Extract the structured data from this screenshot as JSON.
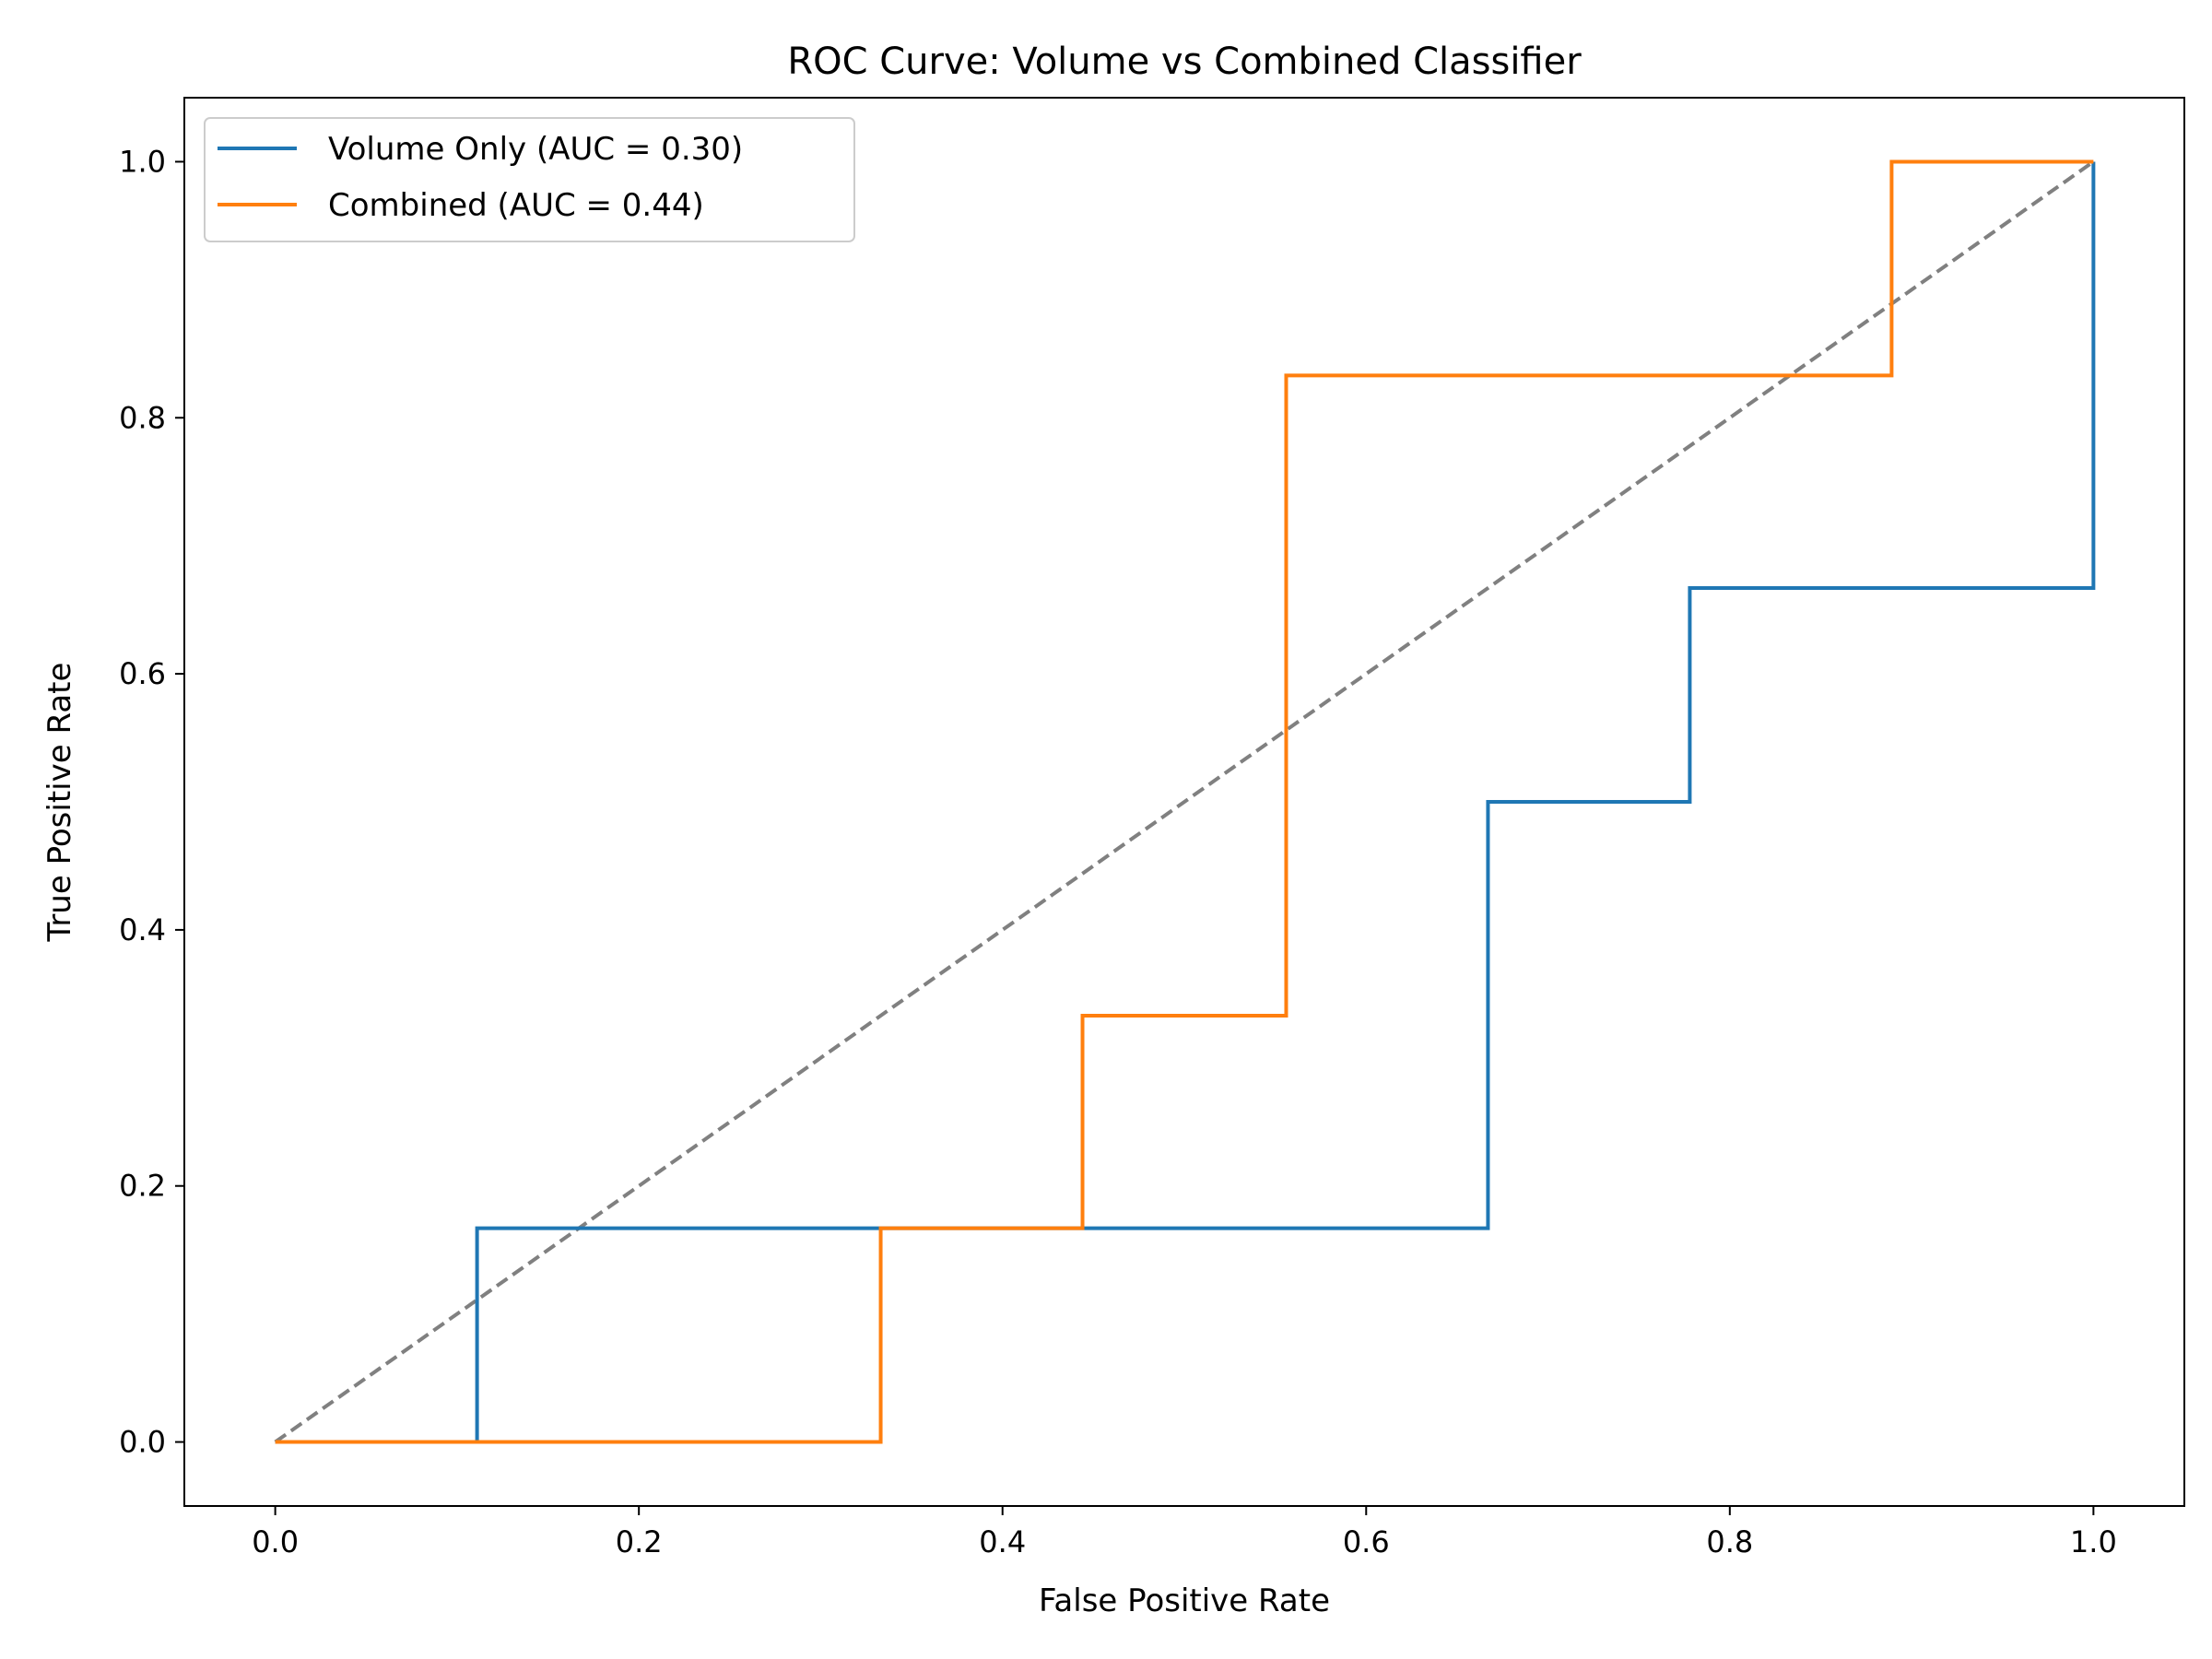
{
  "chart_data": {
    "type": "line",
    "title": "ROC Curve: Volume vs Combined Classifier",
    "xlabel": "False Positive Rate",
    "ylabel": "True Positive Rate",
    "xlim": [
      -0.05,
      1.05
    ],
    "ylim": [
      -0.05,
      1.05
    ],
    "x_ticks": [
      "0.0",
      "0.2",
      "0.4",
      "0.6",
      "0.8",
      "1.0"
    ],
    "y_ticks": [
      "0.0",
      "0.2",
      "0.4",
      "0.6",
      "0.8",
      "1.0"
    ],
    "grid": false,
    "legend_position": "upper left",
    "series": [
      {
        "name": "Volume Only (AUC = 0.30)",
        "color": "#1f77b4",
        "style": "solid",
        "x": [
          0.0,
          0.111,
          0.111,
          0.667,
          0.667,
          0.778,
          0.778,
          1.0,
          1.0
        ],
        "y": [
          0.0,
          0.0,
          0.167,
          0.167,
          0.5,
          0.5,
          0.667,
          0.667,
          1.0
        ]
      },
      {
        "name": "Combined (AUC = 0.44)",
        "color": "#ff7f0e",
        "style": "solid",
        "x": [
          0.0,
          0.333,
          0.333,
          0.444,
          0.444,
          0.556,
          0.556,
          0.889,
          0.889,
          1.0
        ],
        "y": [
          0.0,
          0.0,
          0.167,
          0.167,
          0.333,
          0.333,
          0.833,
          0.833,
          1.0,
          1.0
        ]
      }
    ],
    "reference_line": {
      "color": "#808080",
      "style": "dashed",
      "x": [
        0.0,
        1.0
      ],
      "y": [
        0.0,
        1.0
      ]
    }
  }
}
